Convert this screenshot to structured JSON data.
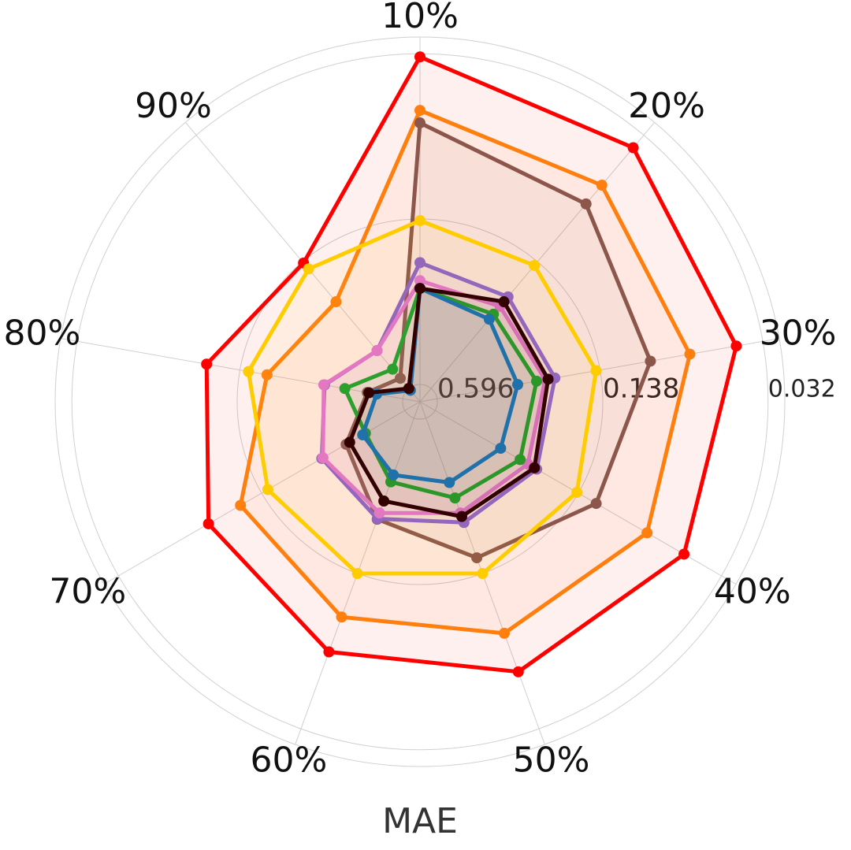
{
  "chart_data": {
    "type": "radar",
    "title": "MAE",
    "categories": [
      "10%",
      "20%",
      "30%",
      "40%",
      "50%",
      "60%",
      "70%",
      "80%",
      "90%"
    ],
    "rscale": "log",
    "rlim": [
      0.695,
      0.0276
    ],
    "rticks": [
      0.596,
      0.138,
      0.032
    ],
    "grid": true,
    "series": [
      {
        "color": "#ff0000",
        "values": [
          0.0329,
          0.037,
          0.0406,
          0.0469,
          0.0547,
          0.066,
          0.0802,
          0.1023,
          0.14
        ]
      },
      {
        "color": "#ff7f0e",
        "values": [
          0.0528,
          0.057,
          0.0616,
          0.0684,
          0.0786,
          0.0916,
          0.1112,
          0.176,
          0.219
        ]
      },
      {
        "color": "#8c564b",
        "values": [
          0.059,
          0.0708,
          0.0878,
          0.115,
          0.16,
          0.23,
          0.327,
          0.433,
          0.53
        ]
      },
      {
        "color": "#ffcc00",
        "values": [
          0.14,
          0.144,
          0.143,
          0.14,
          0.138,
          0.138,
          0.147,
          0.149,
          0.15
        ]
      },
      {
        "color": "#9467bd",
        "values": [
          0.203,
          0.207,
          0.207,
          0.211,
          0.223,
          0.231,
          0.255,
          0.295,
          0.385
        ]
      },
      {
        "color": "#e377c2",
        "values": [
          0.238,
          0.231,
          0.226,
          0.231,
          0.244,
          0.244,
          0.258,
          0.293,
          0.385
        ]
      },
      {
        "color": "#2ca02c",
        "values": [
          0.255,
          0.253,
          0.244,
          0.25,
          0.281,
          0.327,
          0.398,
          0.354,
          0.477
        ]
      },
      {
        "color": "#1f77b4",
        "values": [
          0.255,
          0.268,
          0.289,
          0.305,
          0.325,
          0.349,
          0.387,
          0.471,
          0.609
        ]
      },
      {
        "color": "#330000",
        "values": [
          0.255,
          0.219,
          0.22,
          0.216,
          0.236,
          0.273,
          0.339,
          0.439,
          0.596
        ]
      }
    ]
  }
}
